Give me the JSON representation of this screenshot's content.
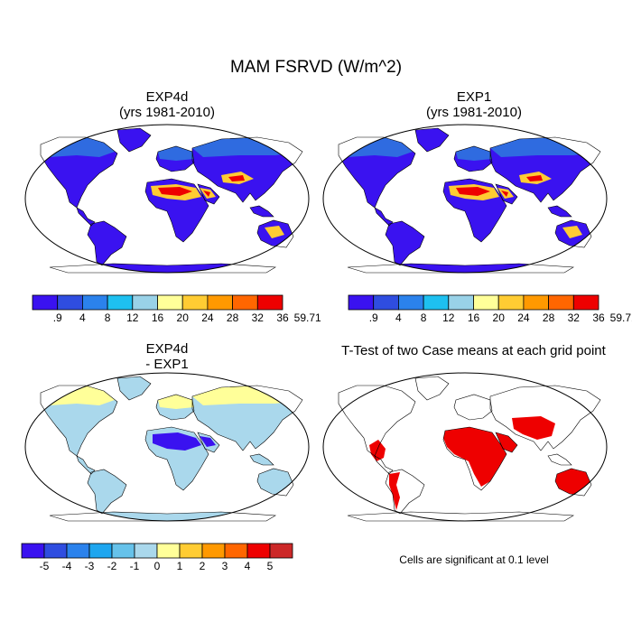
{
  "figure": {
    "title": "MAM FSRVD (W/m^2)"
  },
  "panels": [
    {
      "id": "exp4d",
      "title_line1": "EXP4d",
      "title_line2": "(yrs 1981-2010)"
    },
    {
      "id": "exp1",
      "title_line1": "EXP1",
      "title_line2": "(yrs 1981-2010)"
    },
    {
      "id": "diff",
      "title_line1": "EXP4d",
      "title_line2": "- EXP1"
    },
    {
      "id": "ttest",
      "title_line1": "T-Test of two Case means at each grid point",
      "title_line2": ""
    }
  ],
  "colorbars": {
    "absolute": {
      "labels": [
        ".9",
        "4",
        "8",
        "12",
        "16",
        "20",
        "24",
        "28",
        "32",
        "36",
        "59.71"
      ],
      "colors": [
        "#3a12f0",
        "#2f4de0",
        "#2b82ec",
        "#1ec0f0",
        "#99d2e8",
        "#ffff99",
        "#ffcc33",
        "#ff9900",
        "#ff6600",
        "#ee0000",
        "#cc2828"
      ]
    },
    "difference": {
      "labels": [
        "-5",
        "-4",
        "-3",
        "-2",
        "-1",
        "0",
        "1",
        "2",
        "3",
        "4",
        "5"
      ],
      "colors": [
        "#3a12f0",
        "#2f4de0",
        "#2b82ec",
        "#1ea6ef",
        "#66c2ea",
        "#aad8ec",
        "#ffff99",
        "#ffcc33",
        "#ff9900",
        "#ff6600",
        "#ee0000",
        "#cc2828"
      ]
    }
  },
  "significance_note": "Cells are significant at 0.1 level",
  "colors": {
    "ocean": "#ffffff",
    "land_low": "#3a12f0",
    "land_mid": "#2f6be0",
    "desert_hot": "#ffcc33",
    "desert_max": "#ee0000",
    "diff_land": "#aad8ec",
    "diff_north": "#ffff99",
    "diff_sahara": "#3a12f0",
    "significant": "#ee0000"
  }
}
